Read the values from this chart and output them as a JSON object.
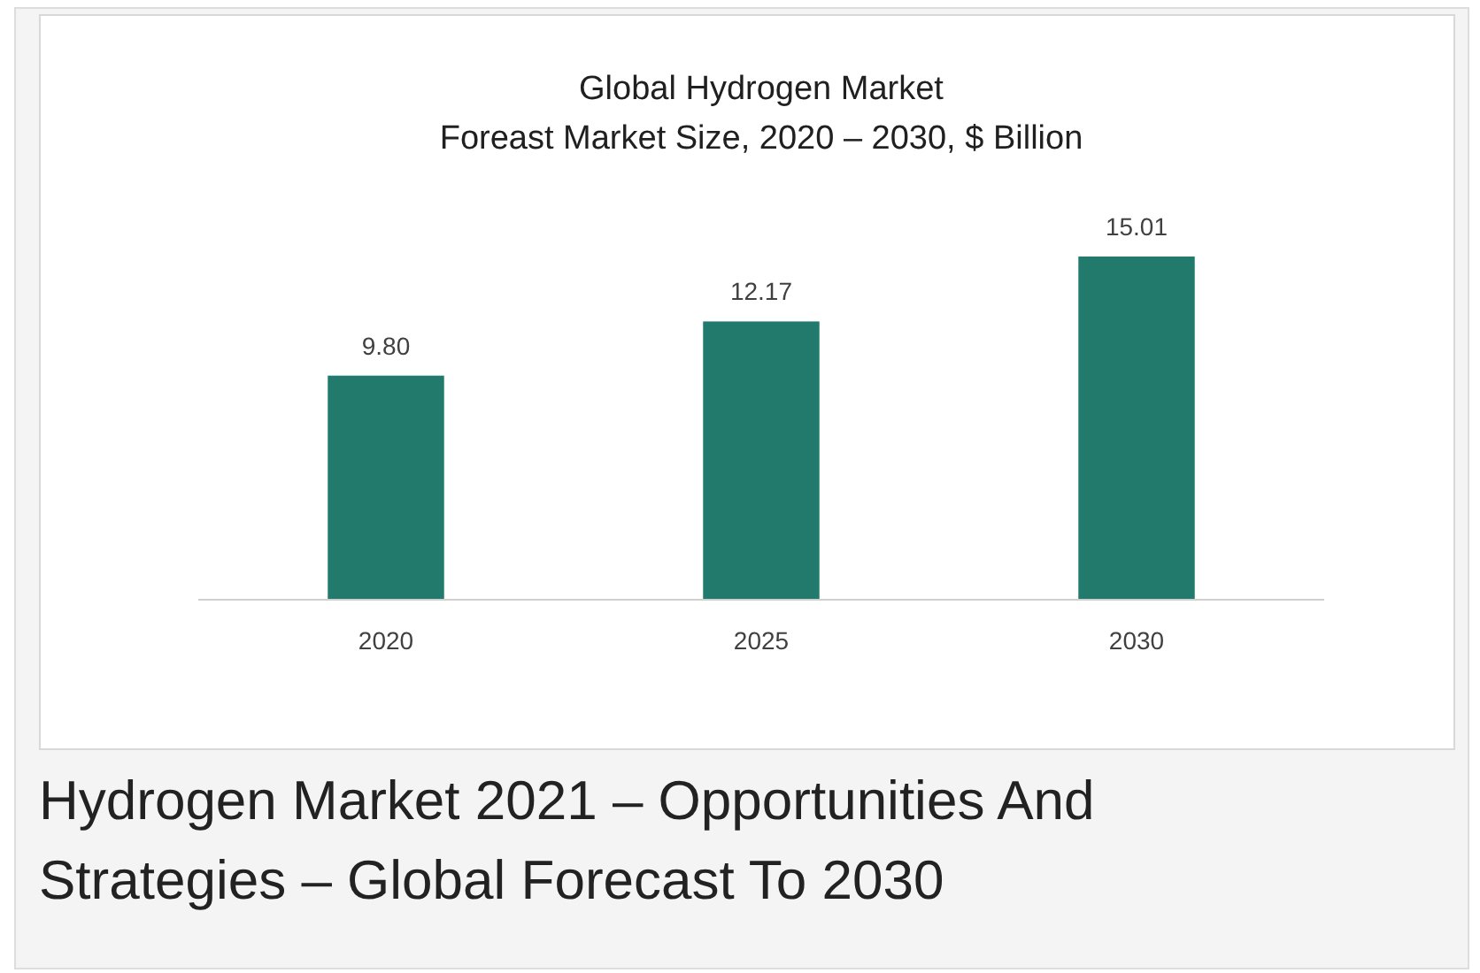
{
  "chart_data": {
    "type": "bar",
    "title": "Global Hydrogen Market\nForeast Market Size, 2020 – 2030, $ Billion",
    "categories": [
      "2020",
      "2025",
      "2030"
    ],
    "values": [
      9.8,
      12.17,
      15.01
    ],
    "value_labels": [
      "9.80",
      "12.17",
      "15.01"
    ],
    "color": "#217a6b",
    "annotations": [
      "Hydrogen Market 2021 – Opportunities And Strategies – Global Forecast To 2030"
    ]
  }
}
